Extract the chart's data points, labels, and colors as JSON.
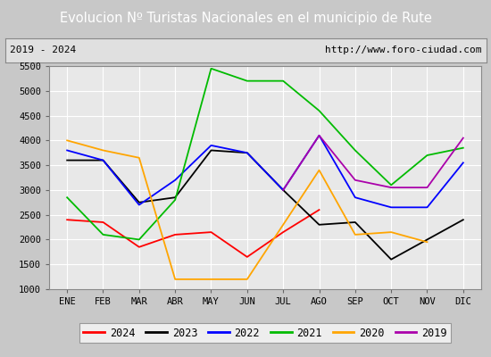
{
  "title": "Evolucion Nº Turistas Nacionales en el municipio de Rute",
  "subtitle_left": "2019 - 2024",
  "subtitle_right": "http://www.foro-ciudad.com",
  "months": [
    "ENE",
    "FEB",
    "MAR",
    "ABR",
    "MAY",
    "JUN",
    "JUL",
    "AGO",
    "SEP",
    "OCT",
    "NOV",
    "DIC"
  ],
  "ylim": [
    1000,
    5500
  ],
  "yticks": [
    1000,
    1500,
    2000,
    2500,
    3000,
    3500,
    4000,
    4500,
    5000,
    5500
  ],
  "series": {
    "2024": {
      "color": "#ff0000",
      "data": [
        2400,
        2350,
        1850,
        2100,
        2150,
        1650,
        2150,
        2600,
        null,
        null,
        null,
        null
      ]
    },
    "2023": {
      "color": "#000000",
      "data": [
        3600,
        3600,
        2750,
        2850,
        3800,
        3750,
        3000,
        2300,
        2350,
        1600,
        2000,
        2400
      ]
    },
    "2022": {
      "color": "#0000ff",
      "data": [
        3800,
        3600,
        2700,
        3200,
        3900,
        3750,
        3000,
        4100,
        2850,
        2650,
        2650,
        3550
      ]
    },
    "2021": {
      "color": "#00bb00",
      "data": [
        2850,
        2100,
        2000,
        2800,
        5450,
        5200,
        5200,
        4600,
        3800,
        3100,
        3700,
        3850
      ]
    },
    "2020": {
      "color": "#ffa500",
      "data": [
        4000,
        3800,
        3650,
        1200,
        1200,
        1200,
        2300,
        3400,
        2100,
        2150,
        1950,
        null
      ]
    },
    "2019": {
      "color": "#aa00aa",
      "data": [
        null,
        null,
        null,
        null,
        null,
        null,
        3000,
        4100,
        3200,
        3050,
        3050,
        4050
      ]
    }
  },
  "title_bg_color": "#4472c4",
  "title_font_color": "#ffffff",
  "plot_bg_color": "#e8e8e8",
  "grid_color": "#ffffff",
  "border_color": "#888888",
  "subtitle_bg_color": "#e0e0e0",
  "fig_bg_color": "#c8c8c8",
  "legend_order": [
    "2024",
    "2023",
    "2022",
    "2021",
    "2020",
    "2019"
  ]
}
